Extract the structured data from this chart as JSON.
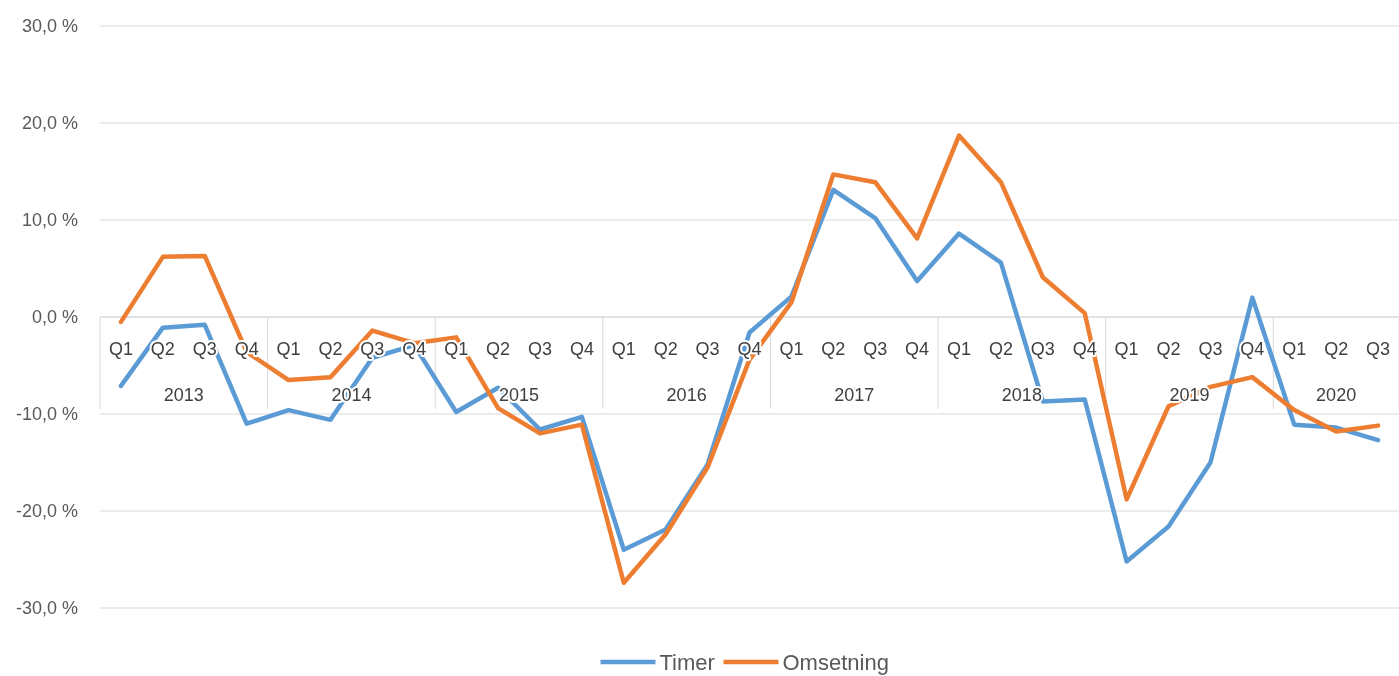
{
  "chart_data": {
    "type": "line",
    "categories": [
      "Q1",
      "Q2",
      "Q3",
      "Q4",
      "Q1",
      "Q2",
      "Q3",
      "Q4",
      "Q1",
      "Q2",
      "Q3",
      "Q4",
      "Q1",
      "Q2",
      "Q3",
      "Q4",
      "Q1",
      "Q2",
      "Q3",
      "Q4",
      "Q1",
      "Q2",
      "Q3",
      "Q4",
      "Q1",
      "Q2",
      "Q3",
      "Q4",
      "Q1",
      "Q2",
      "Q3"
    ],
    "series": [
      {
        "name": "Timer",
        "color": "#5b9bd5",
        "values": [
          -7.1,
          -1.1,
          -0.8,
          -11.0,
          -9.6,
          -10.6,
          -4.2,
          -2.9,
          -9.8,
          -7.3,
          -11.6,
          -10.3,
          -24.0,
          -21.9,
          -15.2,
          -1.6,
          2.1,
          13.1,
          10.2,
          3.7,
          8.6,
          5.6,
          -8.7,
          -8.5,
          -25.2,
          -21.6,
          -15.0,
          2.0,
          -11.1,
          -11.4,
          -12.7
        ]
      },
      {
        "name": "Omsetning",
        "color": "#ed7d31",
        "values": [
          -0.5,
          6.2,
          6.3,
          -3.6,
          -6.5,
          -6.2,
          -1.4,
          -2.7,
          -2.1,
          -9.4,
          -12.0,
          -11.1,
          -27.4,
          -22.4,
          -15.5,
          -4.4,
          1.5,
          14.7,
          13.9,
          8.1,
          18.7,
          13.9,
          4.1,
          0.4,
          -18.8,
          -9.2,
          -7.2,
          -6.2,
          -9.6,
          -11.8,
          -11.2
        ]
      }
    ],
    "annotations": [
      "2013",
      "2014",
      "2015",
      "2016",
      "2017",
      "2018",
      "2019",
      "2020"
    ],
    "ylim": [
      -30,
      30
    ],
    "yticks": [
      {
        "value": -30,
        "label": "-30,0 %"
      },
      {
        "value": -20,
        "label": "-20,0 %"
      },
      {
        "value": -10,
        "label": "-10,0 %"
      },
      {
        "value": 0,
        "label": "0,0 %"
      },
      {
        "value": 10,
        "label": "10,0 %"
      },
      {
        "value": 20,
        "label": "20,0 %"
      },
      {
        "value": 30,
        "label": "30,0 %"
      }
    ],
    "grid": "y",
    "legend": "bottom",
    "line_style": "solid",
    "marker": "none"
  }
}
